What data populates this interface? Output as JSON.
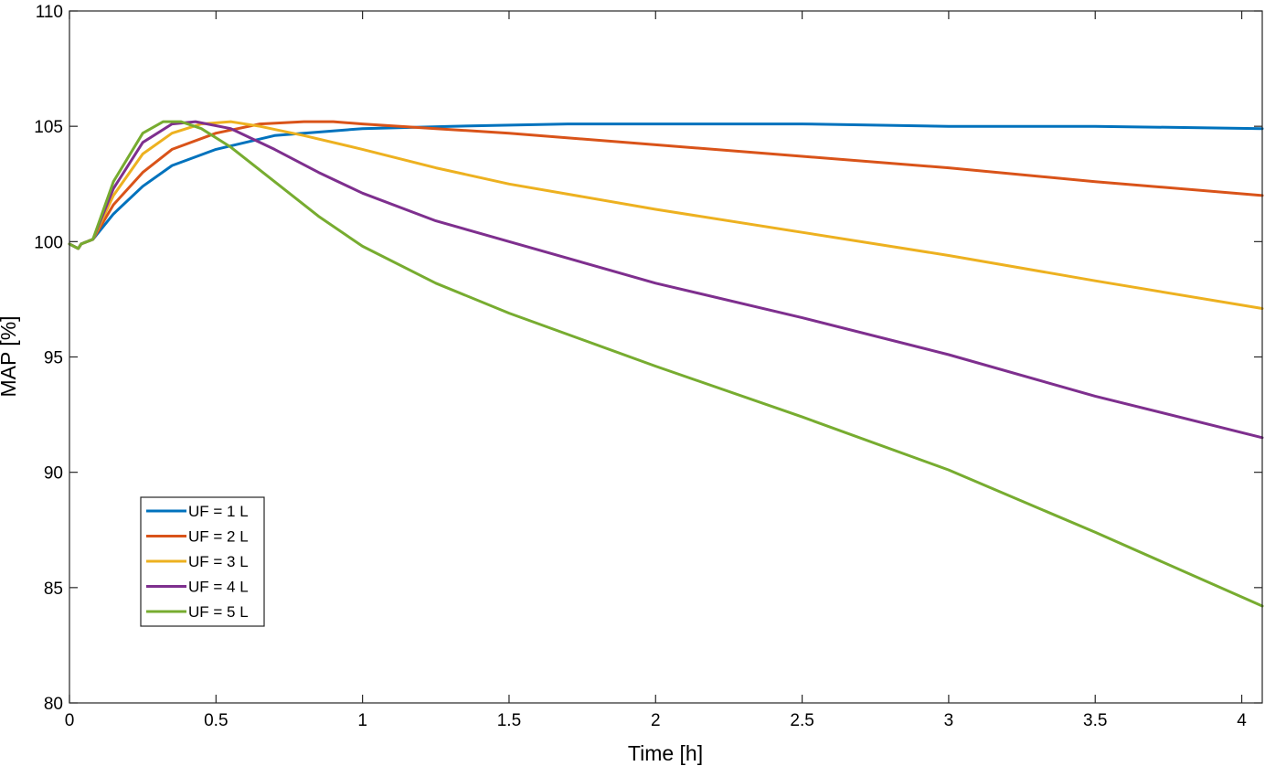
{
  "chart_data": {
    "type": "line",
    "title": "",
    "xlabel": "Time [h]",
    "ylabel": "MAP [%]",
    "xlim": [
      0,
      4.07
    ],
    "ylim": [
      80,
      110
    ],
    "xticks": [
      0,
      0.5,
      1,
      1.5,
      2,
      2.5,
      3,
      3.5,
      4
    ],
    "xtick_labels": [
      "0",
      "0.5",
      "1",
      "1.5",
      "2",
      "2.5",
      "3",
      "3.5",
      "4"
    ],
    "yticks": [
      80,
      85,
      90,
      95,
      100,
      105,
      110
    ],
    "ytick_labels": [
      "80",
      "85",
      "90",
      "95",
      "100",
      "105",
      "110"
    ],
    "grid": false,
    "legend_position": "lower-left",
    "series": [
      {
        "name": "UF = 1 L",
        "color": "#0072BD",
        "x": [
          0,
          0.03,
          0.04,
          0.08,
          0.15,
          0.25,
          0.35,
          0.5,
          0.7,
          1.0,
          1.3,
          1.7,
          2.0,
          2.5,
          3.0,
          3.5,
          4.07
        ],
        "y": [
          99.9,
          99.7,
          99.9,
          100.1,
          101.2,
          102.4,
          103.3,
          104.0,
          104.6,
          104.9,
          105.0,
          105.1,
          105.1,
          105.1,
          105.0,
          105.0,
          104.9
        ]
      },
      {
        "name": "UF = 2 L",
        "color": "#D95319",
        "x": [
          0,
          0.03,
          0.04,
          0.08,
          0.15,
          0.25,
          0.35,
          0.5,
          0.65,
          0.8,
          0.9,
          1.0,
          1.25,
          1.5,
          2.0,
          2.5,
          3.0,
          3.5,
          4.07
        ],
        "y": [
          99.9,
          99.7,
          99.9,
          100.1,
          101.6,
          103.0,
          104.0,
          104.7,
          105.1,
          105.2,
          105.2,
          105.1,
          104.9,
          104.7,
          104.2,
          103.7,
          103.2,
          102.6,
          102.0
        ]
      },
      {
        "name": "UF = 3 L",
        "color": "#EDB120",
        "x": [
          0,
          0.03,
          0.04,
          0.08,
          0.15,
          0.25,
          0.35,
          0.45,
          0.55,
          0.65,
          0.8,
          1.0,
          1.25,
          1.5,
          2.0,
          2.5,
          3.0,
          3.5,
          4.07
        ],
        "y": [
          99.9,
          99.7,
          99.9,
          100.1,
          102.0,
          103.8,
          104.7,
          105.1,
          105.2,
          105.0,
          104.6,
          104.0,
          103.2,
          102.5,
          101.4,
          100.4,
          99.4,
          98.3,
          97.1
        ]
      },
      {
        "name": "UF = 4 L",
        "color": "#7E2F8E",
        "x": [
          0,
          0.03,
          0.04,
          0.08,
          0.15,
          0.25,
          0.35,
          0.43,
          0.55,
          0.7,
          0.85,
          1.0,
          1.25,
          1.5,
          2.0,
          2.5,
          3.0,
          3.5,
          4.07
        ],
        "y": [
          99.9,
          99.7,
          99.9,
          100.1,
          102.3,
          104.3,
          105.1,
          105.2,
          104.9,
          104.0,
          103.0,
          102.1,
          100.9,
          100.0,
          98.2,
          96.7,
          95.1,
          93.3,
          91.5
        ]
      },
      {
        "name": "UF = 5 L",
        "color": "#77AC30",
        "x": [
          0,
          0.03,
          0.04,
          0.08,
          0.15,
          0.25,
          0.32,
          0.38,
          0.45,
          0.55,
          0.7,
          0.85,
          1.0,
          1.25,
          1.5,
          2.0,
          2.5,
          3.0,
          3.5,
          4.07
        ],
        "y": [
          99.9,
          99.7,
          99.9,
          100.1,
          102.6,
          104.7,
          105.2,
          105.2,
          104.9,
          104.1,
          102.6,
          101.1,
          99.8,
          98.2,
          96.9,
          94.6,
          92.4,
          90.1,
          87.4,
          84.2
        ]
      }
    ]
  }
}
